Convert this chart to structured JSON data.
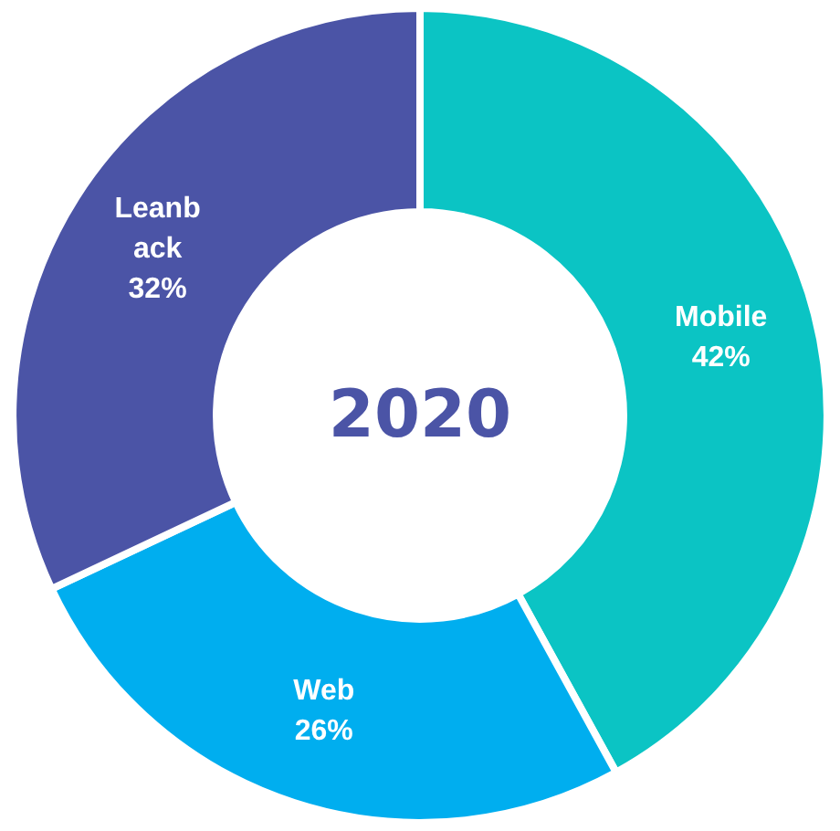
{
  "chart_data": {
    "type": "donut",
    "title": "2020",
    "categories": [
      "Mobile",
      "Web",
      "Leanback"
    ],
    "values": [
      42,
      26,
      32
    ],
    "colors": [
      "#0bc4c4",
      "#00aeef",
      "#4b54a6"
    ],
    "value_labels": [
      "42%",
      "26%",
      "32%"
    ],
    "legend": false
  }
}
